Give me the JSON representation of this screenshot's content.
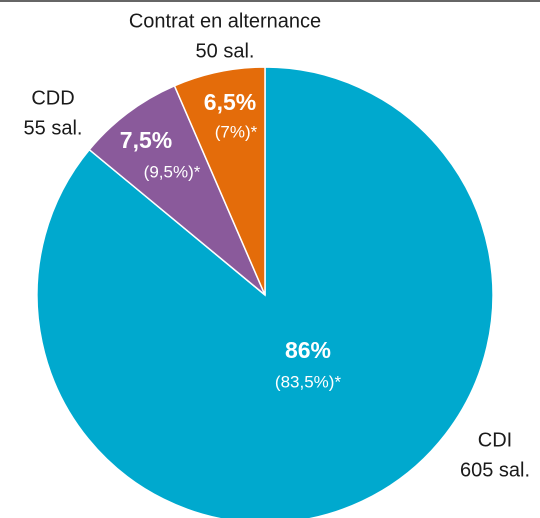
{
  "chart_data": {
    "type": "pie",
    "categories": [
      "CDI",
      "CDD",
      "Contrat en alternance"
    ],
    "values": [
      86,
      7.5,
      6.5
    ],
    "value_labels": [
      "86%",
      "7,5%",
      "6,5%"
    ],
    "comparison_values": [
      83.5,
      9.5,
      7
    ],
    "comparison_value_labels": [
      "(83,5%)*",
      "(9,5%)*",
      "(7%)*"
    ],
    "counts": [
      605,
      55,
      50
    ],
    "count_labels": [
      "605 sal.",
      "55 sal.",
      "50 sal."
    ],
    "colors": [
      "#00a9ce",
      "#8a5a9b",
      "#e46c0a"
    ]
  }
}
